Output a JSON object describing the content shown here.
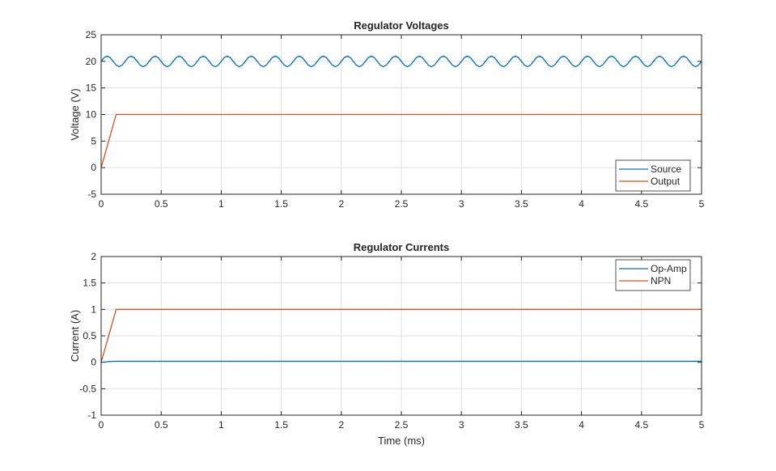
{
  "chart_data": [
    {
      "type": "line",
      "title": "Regulator Voltages",
      "ylabel": "Voltage (V)",
      "xlim": [
        0,
        5
      ],
      "xticks": [
        0,
        0.5,
        1,
        1.5,
        2,
        2.5,
        3,
        3.5,
        4,
        4.5,
        5
      ],
      "ylim": [
        -5,
        25
      ],
      "yticks": [
        -5,
        0,
        5,
        10,
        15,
        20,
        25
      ],
      "grid": true,
      "legend_loc": "southeast",
      "series": [
        {
          "name": "Source",
          "color": "#0072BD",
          "x": [
            0,
            0.025,
            0.05,
            0.075,
            0.1,
            0.125,
            0.15,
            0.175,
            0.2,
            0.225,
            0.25,
            0.275,
            0.3,
            0.325,
            0.35,
            0.375,
            0.4,
            0.425,
            0.45,
            0.475,
            0.5,
            0.525,
            0.55,
            0.575,
            0.6,
            0.625,
            0.65,
            0.675,
            0.7,
            0.725,
            0.75,
            0.775,
            0.8,
            0.825,
            0.85,
            0.875,
            0.9,
            0.925,
            0.95,
            0.975,
            1,
            1.025,
            1.05,
            1.075,
            1.1,
            1.125,
            1.15,
            1.175,
            1.2,
            1.225,
            1.25,
            1.275,
            1.3,
            1.325,
            1.35,
            1.375,
            1.4,
            1.425,
            1.45,
            1.475,
            1.5,
            1.525,
            1.55,
            1.575,
            1.6,
            1.625,
            1.65,
            1.675,
            1.7,
            1.725,
            1.75,
            1.775,
            1.8,
            1.825,
            1.85,
            1.875,
            1.9,
            1.925,
            1.95,
            1.975,
            2,
            2.025,
            2.05,
            2.075,
            2.1,
            2.125,
            2.15,
            2.175,
            2.2,
            2.225,
            2.25,
            2.275,
            2.3,
            2.325,
            2.35,
            2.375,
            2.4,
            2.425,
            2.45,
            2.475,
            2.5,
            2.525,
            2.55,
            2.575,
            2.6,
            2.625,
            2.65,
            2.675,
            2.7,
            2.725,
            2.75,
            2.775,
            2.8,
            2.825,
            2.85,
            2.875,
            2.9,
            2.925,
            2.95,
            2.975,
            3,
            3.025,
            3.05,
            3.075,
            3.1,
            3.125,
            3.15,
            3.175,
            3.2,
            3.225,
            3.25,
            3.275,
            3.3,
            3.325,
            3.35,
            3.375,
            3.4,
            3.425,
            3.45,
            3.475,
            3.5,
            3.525,
            3.55,
            3.575,
            3.6,
            3.625,
            3.65,
            3.675,
            3.7,
            3.725,
            3.75,
            3.775,
            3.8,
            3.825,
            3.85,
            3.875,
            3.9,
            3.925,
            3.95,
            3.975,
            4,
            4.025,
            4.05,
            4.075,
            4.1,
            4.125,
            4.15,
            4.175,
            4.2,
            4.225,
            4.25,
            4.275,
            4.3,
            4.325,
            4.35,
            4.375,
            4.4,
            4.425,
            4.45,
            4.475,
            4.5,
            4.525,
            4.55,
            4.575,
            4.6,
            4.625,
            4.65,
            4.675,
            4.7,
            4.725,
            4.75,
            4.775,
            4.8,
            4.825,
            4.85,
            4.875,
            4.9,
            4.925,
            4.95,
            4.975,
            5
          ],
          "values": [
            20,
            20.71,
            21,
            20.71,
            20,
            19.29,
            19,
            19.29,
            20,
            20.71,
            21,
            20.71,
            20,
            19.29,
            19,
            19.29,
            20,
            20.71,
            21,
            20.71,
            20,
            19.29,
            19,
            19.29,
            20,
            20.71,
            21,
            20.71,
            20,
            19.29,
            19,
            19.29,
            20,
            20.71,
            21,
            20.71,
            20,
            19.29,
            19,
            19.29,
            20,
            20.71,
            21,
            20.71,
            20,
            19.29,
            19,
            19.29,
            20,
            20.71,
            21,
            20.71,
            20,
            19.29,
            19,
            19.29,
            20,
            20.71,
            21,
            20.71,
            20,
            19.29,
            19,
            19.29,
            20,
            20.71,
            21,
            20.71,
            20,
            19.29,
            19,
            19.29,
            20,
            20.71,
            21,
            20.71,
            20,
            19.29,
            19,
            19.29,
            20,
            20.71,
            21,
            20.71,
            20,
            19.29,
            19,
            19.29,
            20,
            20.71,
            21,
            20.71,
            20,
            19.29,
            19,
            19.29,
            20,
            20.71,
            21,
            20.71,
            20,
            19.29,
            19,
            19.29,
            20,
            20.71,
            21,
            20.71,
            20,
            19.29,
            19,
            19.29,
            20,
            20.71,
            21,
            20.71,
            20,
            19.29,
            19,
            19.29,
            20,
            20.71,
            21,
            20.71,
            20,
            19.29,
            19,
            19.29,
            20,
            20.71,
            21,
            20.71,
            20,
            19.29,
            19,
            19.29,
            20,
            20.71,
            21,
            20.71,
            20,
            19.29,
            19,
            19.29,
            20,
            20.71,
            21,
            20.71,
            20,
            19.29,
            19,
            19.29,
            20,
            20.71,
            21,
            20.71,
            20,
            19.29,
            19,
            19.29,
            20,
            20.71,
            21,
            20.71,
            20,
            19.29,
            19,
            19.29,
            20,
            20.71,
            21,
            20.71,
            20,
            19.29,
            19,
            19.29,
            20,
            20.71,
            21,
            20.71,
            20,
            19.29,
            19,
            19.29,
            20,
            20.71,
            21,
            20.71,
            20,
            19.29,
            19,
            19.29,
            20,
            20.71,
            21,
            20.71,
            20,
            19.29,
            19,
            19.29,
            20
          ]
        },
        {
          "name": "Output",
          "color": "#D95319",
          "x": [
            0,
            0.025,
            0.05,
            0.075,
            0.1,
            0.125,
            5
          ],
          "values": [
            0,
            2,
            4,
            6,
            8,
            10,
            10
          ]
        }
      ]
    },
    {
      "type": "line",
      "title": "Regulator Currents",
      "ylabel": "Current (A)",
      "xlabel": "Time (ms)",
      "xlim": [
        0,
        5
      ],
      "xticks": [
        0,
        0.5,
        1,
        1.5,
        2,
        2.5,
        3,
        3.5,
        4,
        4.5,
        5
      ],
      "ylim": [
        -1,
        2
      ],
      "yticks": [
        -1,
        -0.5,
        0,
        0.5,
        1,
        1.5,
        2
      ],
      "grid": true,
      "legend_loc": "northeast",
      "series": [
        {
          "name": "Op-Amp",
          "color": "#0072BD",
          "x": [
            0,
            0.05,
            0.1,
            0.125,
            5
          ],
          "values": [
            0,
            0.01,
            0.02,
            0.02,
            0.02
          ]
        },
        {
          "name": "NPN",
          "color": "#D95319",
          "x": [
            0,
            0.025,
            0.05,
            0.075,
            0.1,
            0.125,
            5
          ],
          "values": [
            0,
            0.2,
            0.4,
            0.6,
            0.8,
            1,
            1
          ]
        }
      ]
    }
  ]
}
